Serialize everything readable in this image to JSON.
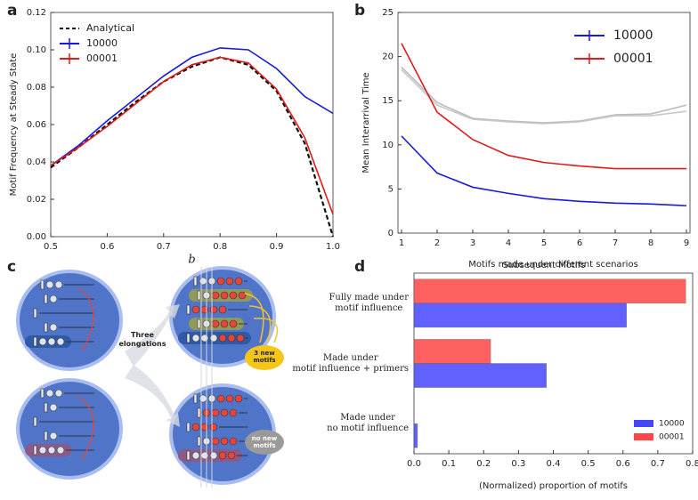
{
  "chart_data": [
    {
      "panel": "a",
      "type": "line",
      "xlabel": "b",
      "ylabel": "Motif Frequency at Steady State",
      "x": [
        0.5,
        0.55,
        0.6,
        0.65,
        0.7,
        0.75,
        0.8,
        0.85,
        0.9,
        0.95,
        1.0
      ],
      "series": [
        {
          "name": "Analytical",
          "color": "#111111",
          "linestyle": "dashed",
          "values": [
            0.037,
            0.048,
            0.06,
            0.072,
            0.083,
            0.091,
            0.096,
            0.092,
            0.078,
            0.05,
            0.0
          ]
        },
        {
          "name": "10000",
          "color": "#1a1adb",
          "linestyle": "solid",
          "values": [
            0.038,
            0.049,
            0.062,
            0.074,
            0.086,
            0.096,
            0.101,
            0.1,
            0.09,
            0.075,
            0.066
          ]
        },
        {
          "name": "00001",
          "color": "#e01b1b",
          "linestyle": "solid",
          "values": [
            0.038,
            0.048,
            0.059,
            0.071,
            0.083,
            0.092,
            0.096,
            0.093,
            0.079,
            0.053,
            0.012
          ]
        }
      ],
      "xlim": [
        0.5,
        1.0
      ],
      "ylim": [
        0,
        0.12
      ],
      "xticks": [
        0.5,
        0.6,
        0.7,
        0.8,
        0.9,
        {
          "value": 1.0,
          "label": "1.0"
        }
      ],
      "yticks": [
        {
          "value": 0,
          "label": "0.00"
        },
        {
          "value": 0.02,
          "label": "0.02"
        },
        {
          "value": 0.04,
          "label": "0.04"
        },
        {
          "value": 0.06,
          "label": "0.06"
        },
        {
          "value": 0.08,
          "label": "0.08"
        },
        {
          "value": 0.1,
          "label": "0.10"
        },
        {
          "value": 0.12,
          "label": "0.12"
        }
      ],
      "legend": "upper left"
    },
    {
      "panel": "b",
      "type": "line",
      "xlabel": "Subsequent Motifs",
      "ylabel": "Mean Interarrival Time",
      "x": [
        1,
        2,
        3,
        4,
        5,
        6,
        7,
        8,
        9
      ],
      "series": [
        {
          "color": "#bbbbbb",
          "linestyle": "solid",
          "values": [
            18.8,
            14.8,
            13.0,
            12.7,
            12.5,
            12.7,
            13.4,
            13.5,
            14.5
          ]
        },
        {
          "color": "#c8c8c8",
          "linestyle": "solid",
          "values": [
            18.5,
            14.5,
            12.9,
            12.6,
            12.4,
            12.6,
            13.3,
            13.3,
            13.8
          ]
        },
        {
          "name": "10000",
          "color": "#1a1adb",
          "linestyle": "solid",
          "values": [
            11.0,
            6.8,
            5.2,
            4.5,
            3.9,
            3.6,
            3.4,
            3.3,
            3.1
          ]
        },
        {
          "name": "00001",
          "color": "#e01b1b",
          "linestyle": "solid",
          "values": [
            21.5,
            13.7,
            10.6,
            8.8,
            8.0,
            7.6,
            7.3,
            7.3,
            7.3
          ]
        }
      ],
      "xlim": [
        0.9,
        9.1
      ],
      "ylim": [
        0,
        25
      ],
      "xticks": [
        1,
        2,
        3,
        4,
        5,
        6,
        7,
        8,
        9
      ],
      "yticks": [
        0,
        5,
        10,
        15,
        20,
        25
      ],
      "legend": "upper right"
    },
    {
      "panel": "d",
      "type": "hbar",
      "title": "Motifs made under different scenarios",
      "xlabel": "(Normalized) proportion of motifs",
      "categories": [
        "Fully made under\nmotif influence",
        "Made under\nmotif influence + primers",
        "Made under\nno motif influence"
      ],
      "series": [
        {
          "name": "10000",
          "color": "#4646ff",
          "values": [
            0.61,
            0.38,
            0.01
          ]
        },
        {
          "name": "00001",
          "color": "#ff4646",
          "values": [
            0.78,
            0.22,
            0.0
          ]
        }
      ],
      "xlim": [
        0,
        0.8
      ],
      "xticks": [
        {
          "value": 0,
          "label": "0.0"
        },
        0.1,
        0.2,
        0.3,
        0.4,
        0.5,
        0.6,
        0.7,
        0.8
      ],
      "legend": "lower right"
    }
  ],
  "diagram": {
    "panel": "c",
    "middle_label": "Three elongations",
    "top_result": "3 new motifs",
    "bottom_result": "no new motifs"
  }
}
